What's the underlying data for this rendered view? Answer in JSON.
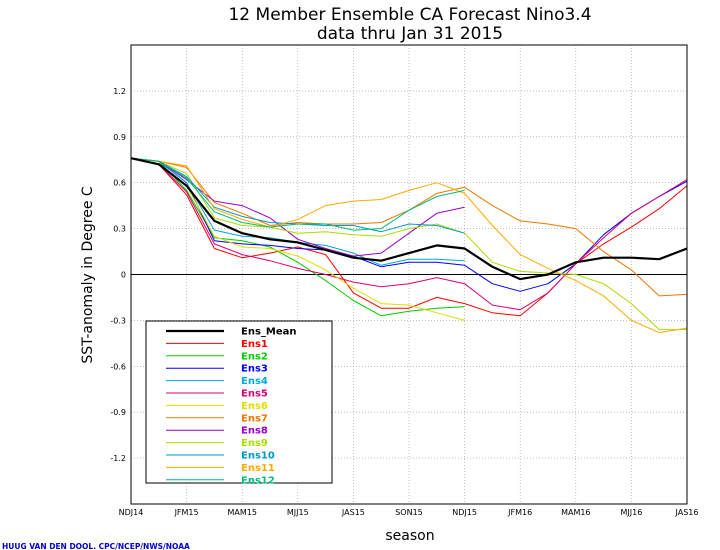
{
  "chart_data": {
    "type": "line",
    "title": "12 Member Ensemble CA Forecast Nino3.4",
    "subtitle": "data thru Jan 31 2015",
    "xlabel": "season",
    "ylabel": "SST-anomaly in Degree C",
    "credit": "HUUG VAN DEN DOOL. CPC/NCEP/NWS/NOAA",
    "ylim": [
      -1.5,
      1.5
    ],
    "yticks": [
      "-1.2",
      "-0.9",
      "-0.6",
      "-0.3",
      "0",
      "0.3",
      "0.6",
      "0.9",
      "1.2"
    ],
    "x_tick_labels": [
      "NDJ14",
      "JFM15",
      "MAM15",
      "MJJ15",
      "JAS15",
      "SON15",
      "NDJ15",
      "JFM16",
      "MAM16",
      "MJJ16",
      "JAS16"
    ],
    "x_index_range": [
      0,
      20
    ],
    "zero_line": true,
    "legend_placement": "bottom-left",
    "series": [
      {
        "name": "Ens_Mean",
        "color": "#000000",
        "width": 2.2,
        "x": [
          0,
          1,
          2,
          3,
          4,
          5,
          6,
          7,
          8,
          9,
          10,
          11,
          12,
          13,
          14,
          15,
          16,
          17,
          18,
          19,
          20
        ],
        "values": [
          0.76,
          0.72,
          0.58,
          0.35,
          0.27,
          0.23,
          0.21,
          0.16,
          0.11,
          0.09,
          0.14,
          0.19,
          0.17,
          0.05,
          -0.03,
          0.0,
          0.08,
          0.11,
          0.11,
          0.1,
          0.17
        ]
      },
      {
        "name": "Ens1",
        "color": "#ff0000",
        "width": 1,
        "x": [
          0,
          1,
          2,
          3,
          4,
          5,
          6,
          7,
          8,
          9,
          10,
          11,
          12,
          13,
          14,
          15,
          16,
          17,
          18,
          19,
          20
        ],
        "values": [
          0.76,
          0.72,
          0.52,
          0.17,
          0.11,
          0.14,
          0.18,
          0.13,
          -0.12,
          -0.22,
          -0.22,
          -0.15,
          -0.19,
          -0.25,
          -0.27,
          -0.12,
          0.07,
          0.2,
          0.31,
          0.43,
          0.58
        ]
      },
      {
        "name": "Ens2",
        "color": "#00cc00",
        "width": 1,
        "x": [
          0,
          1,
          2,
          3,
          4,
          5,
          6,
          7,
          8,
          9,
          10,
          11,
          12
        ],
        "values": [
          0.76,
          0.74,
          0.55,
          0.24,
          0.22,
          0.18,
          0.08,
          -0.04,
          -0.17,
          -0.27,
          -0.24,
          -0.22,
          -0.21
        ]
      },
      {
        "name": "Ens3",
        "color": "#0000ff",
        "width": 1,
        "x": [
          0,
          1,
          2,
          3,
          4,
          5,
          6,
          7,
          8,
          9,
          10,
          11,
          12,
          13,
          14,
          15,
          16,
          17,
          18,
          19,
          20
        ],
        "values": [
          0.76,
          0.74,
          0.6,
          0.22,
          0.2,
          0.19,
          0.17,
          0.16,
          0.12,
          0.05,
          0.08,
          0.08,
          0.06,
          -0.06,
          -0.11,
          -0.06,
          0.07,
          0.26,
          0.4,
          0.51,
          0.61
        ]
      },
      {
        "name": "Ens4",
        "color": "#00aadd",
        "width": 1,
        "x": [
          0,
          1,
          2,
          3,
          4,
          5,
          6,
          7,
          8,
          9,
          10,
          11,
          12
        ],
        "values": [
          0.76,
          0.74,
          0.6,
          0.29,
          0.25,
          0.24,
          0.21,
          0.19,
          0.14,
          0.06,
          0.1,
          0.1,
          0.09
        ]
      },
      {
        "name": "Ens5",
        "color": "#dd0077",
        "width": 1,
        "x": [
          0,
          1,
          2,
          3,
          4,
          5,
          6,
          7,
          8,
          9,
          10,
          11,
          12,
          13,
          14,
          15,
          16,
          17,
          18,
          19,
          20
        ],
        "values": [
          0.76,
          0.72,
          0.54,
          0.2,
          0.13,
          0.09,
          0.04,
          0.0,
          -0.05,
          -0.08,
          -0.06,
          -0.02,
          -0.06,
          -0.2,
          -0.23,
          -0.12,
          0.07,
          0.24,
          0.4,
          0.51,
          0.62
        ]
      },
      {
        "name": "Ens6",
        "color": "#dddd00",
        "width": 1,
        "x": [
          0,
          1,
          2,
          3,
          4,
          5,
          6,
          7,
          8,
          9,
          10,
          11,
          12
        ],
        "values": [
          0.76,
          0.72,
          0.58,
          0.25,
          0.18,
          0.17,
          0.12,
          0.03,
          -0.09,
          -0.19,
          -0.2,
          -0.25,
          -0.3
        ]
      },
      {
        "name": "Ens7",
        "color": "#ee7700",
        "width": 1,
        "x": [
          0,
          1,
          2,
          3,
          4,
          5,
          6,
          7,
          8,
          9,
          10,
          11,
          12,
          13,
          14,
          15,
          16,
          17,
          18,
          19,
          20
        ],
        "values": [
          0.76,
          0.74,
          0.7,
          0.47,
          0.4,
          0.32,
          0.34,
          0.33,
          0.33,
          0.34,
          0.42,
          0.53,
          0.57,
          0.45,
          0.35,
          0.33,
          0.3,
          0.15,
          0.03,
          -0.14,
          -0.13
        ]
      },
      {
        "name": "Ens8",
        "color": "#9900cc",
        "width": 1,
        "x": [
          0,
          1,
          2,
          3,
          4,
          5,
          6,
          7,
          8,
          9,
          10,
          11,
          12
        ],
        "values": [
          0.76,
          0.74,
          0.62,
          0.48,
          0.45,
          0.37,
          0.23,
          0.17,
          0.12,
          0.14,
          0.27,
          0.4,
          0.44
        ]
      },
      {
        "name": "Ens9",
        "color": "#aadd00",
        "width": 1,
        "x": [
          0,
          1,
          2,
          3,
          4,
          5,
          6,
          7,
          8,
          9,
          10,
          11,
          12,
          13,
          14,
          15,
          16,
          17,
          18,
          19,
          20
        ],
        "values": [
          0.76,
          0.74,
          0.66,
          0.37,
          0.32,
          0.31,
          0.27,
          0.28,
          0.26,
          0.25,
          0.3,
          0.33,
          0.27,
          0.08,
          0.02,
          0.01,
          0.0,
          -0.06,
          -0.19,
          -0.36,
          -0.36
        ]
      },
      {
        "name": "Ens10",
        "color": "#0099cc",
        "width": 1,
        "x": [
          0,
          1,
          2,
          3,
          4,
          5,
          6,
          7,
          8,
          9,
          10,
          11,
          12
        ],
        "values": [
          0.76,
          0.74,
          0.64,
          0.44,
          0.38,
          0.34,
          0.33,
          0.32,
          0.32,
          0.28,
          0.33,
          0.32,
          0.27
        ]
      },
      {
        "name": "Ens11",
        "color": "#ffaa00",
        "width": 1,
        "x": [
          0,
          1,
          2,
          3,
          4,
          5,
          6,
          7,
          8,
          9,
          10,
          11,
          12,
          13,
          14,
          15,
          16,
          17,
          18,
          19,
          20
        ],
        "values": [
          0.76,
          0.74,
          0.71,
          0.43,
          0.36,
          0.31,
          0.36,
          0.45,
          0.48,
          0.49,
          0.55,
          0.6,
          0.53,
          0.32,
          0.13,
          0.04,
          -0.04,
          -0.14,
          -0.3,
          -0.38,
          -0.35
        ]
      },
      {
        "name": "Ens12",
        "color": "#00bb77",
        "width": 1,
        "x": [
          0,
          1,
          2,
          3,
          4,
          5,
          6,
          7,
          8,
          9,
          10,
          11,
          12
        ],
        "values": [
          0.76,
          0.74,
          0.63,
          0.41,
          0.34,
          0.31,
          0.33,
          0.33,
          0.29,
          0.3,
          0.42,
          0.51,
          0.55
        ]
      }
    ]
  }
}
